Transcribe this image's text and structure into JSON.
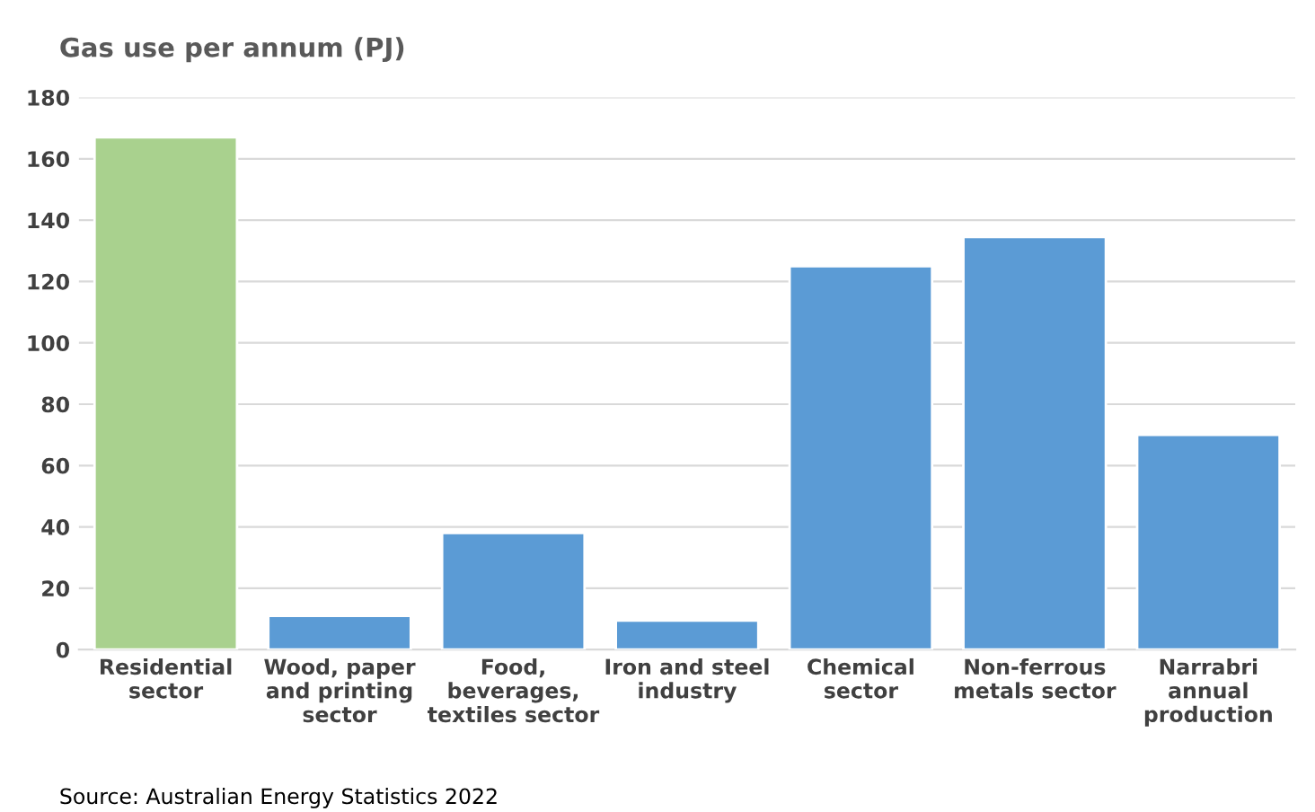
{
  "chart_data": {
    "type": "bar",
    "title": "Gas use per annum (PJ)",
    "categories": [
      "Residential\nsector",
      "Wood, paper\nand printing\nsector",
      "Food,\nbeverages,\ntextiles sector",
      "Iron and steel\nindustry",
      "Chemical\nsector",
      "Non-ferrous\nmetals sector",
      "Narrabri\nannual\nproduction"
    ],
    "values": [
      167,
      11,
      38,
      9.5,
      125,
      134.5,
      70
    ],
    "colors": [
      "#a9d18e",
      "#5b9bd5",
      "#5b9bd5",
      "#5b9bd5",
      "#5b9bd5",
      "#5b9bd5",
      "#5b9bd5"
    ],
    "ylim": [
      0,
      180
    ],
    "yticks": [
      0,
      20,
      40,
      60,
      80,
      100,
      120,
      140,
      160,
      180
    ],
    "grid": "y",
    "annotations": [
      "Source: Australian Energy Statistics 2022"
    ]
  }
}
